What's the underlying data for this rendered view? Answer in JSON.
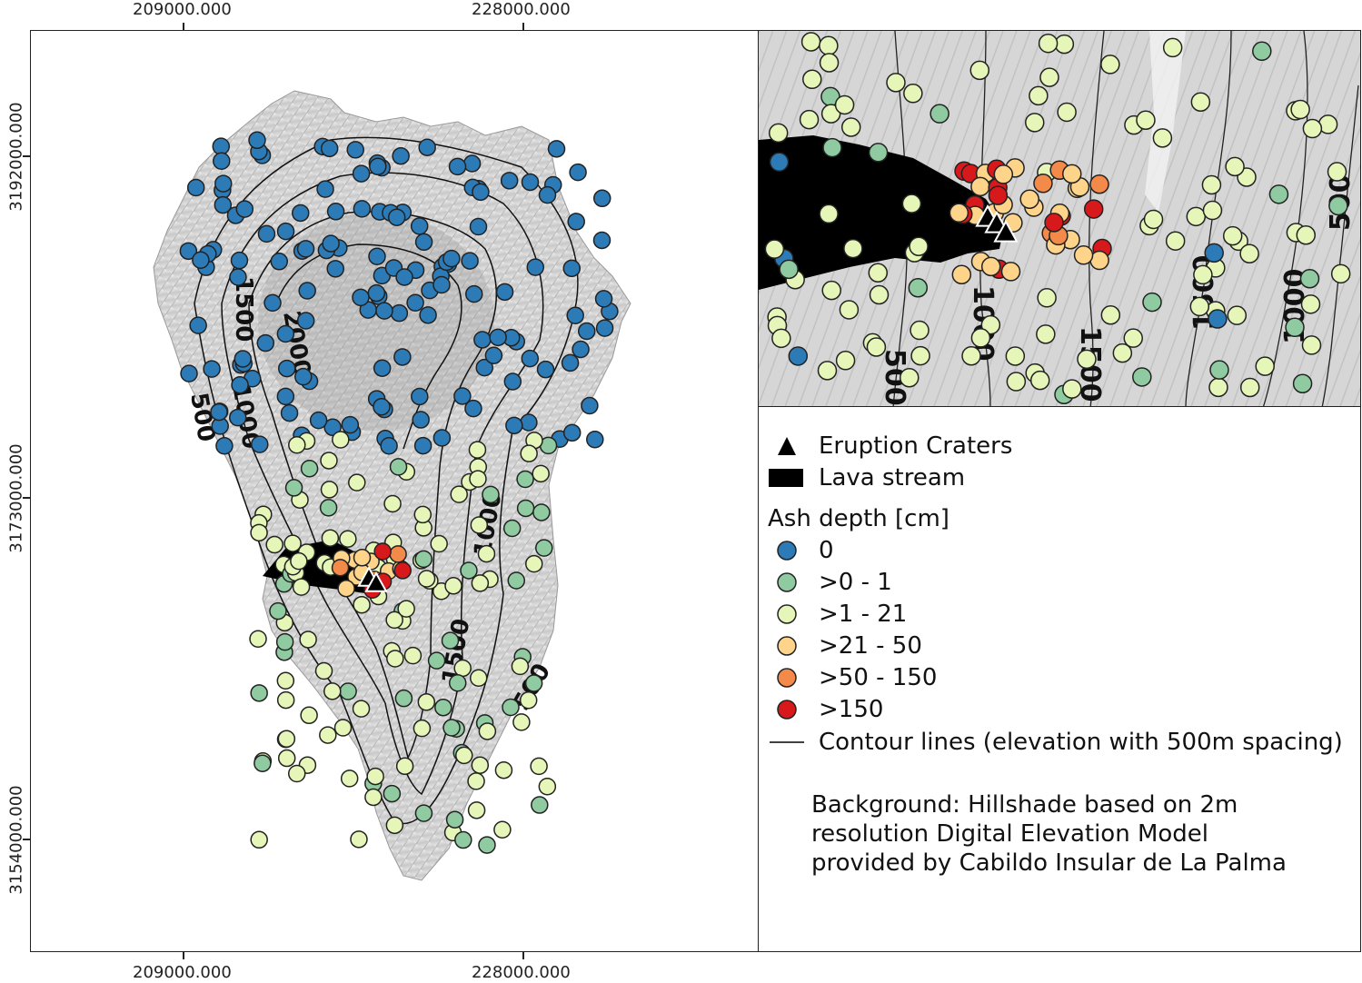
{
  "axes": {
    "x_labels": [
      "209000.000",
      "228000.000"
    ],
    "y_labels": [
      "3192000.000",
      "3173000.000",
      "3154000.000"
    ]
  },
  "contour_labels_main": [
    "1500",
    "2000",
    "1000",
    "500",
    "1000",
    "1500",
    "500"
  ],
  "contour_labels_inset": [
    "500",
    "1000",
    "1500",
    "1500",
    "1000",
    "500"
  ],
  "legend": {
    "craters": "Eruption Craters",
    "lava": "Lava stream",
    "ash_title": "Ash depth [cm]",
    "classes": [
      {
        "label": "0",
        "color": "#2c7bb6"
      },
      {
        "label": ">0 - 1",
        "color": "#8fcaa0"
      },
      {
        "label": ">1 - 21",
        "color": "#e6f5b8"
      },
      {
        "label": ">21 - 50",
        "color": "#fdd48a"
      },
      {
        "label": ">50 - 150",
        "color": "#f38a4a"
      },
      {
        "label": ">150",
        "color": "#d7191c"
      }
    ],
    "contours": "Contour lines (elevation with 500m spacing)",
    "background_note": [
      "Background: Hillshade based on 2m",
      "resolution Digital Elevation Model",
      "provided by Cabildo Insular de La Palma"
    ]
  }
}
